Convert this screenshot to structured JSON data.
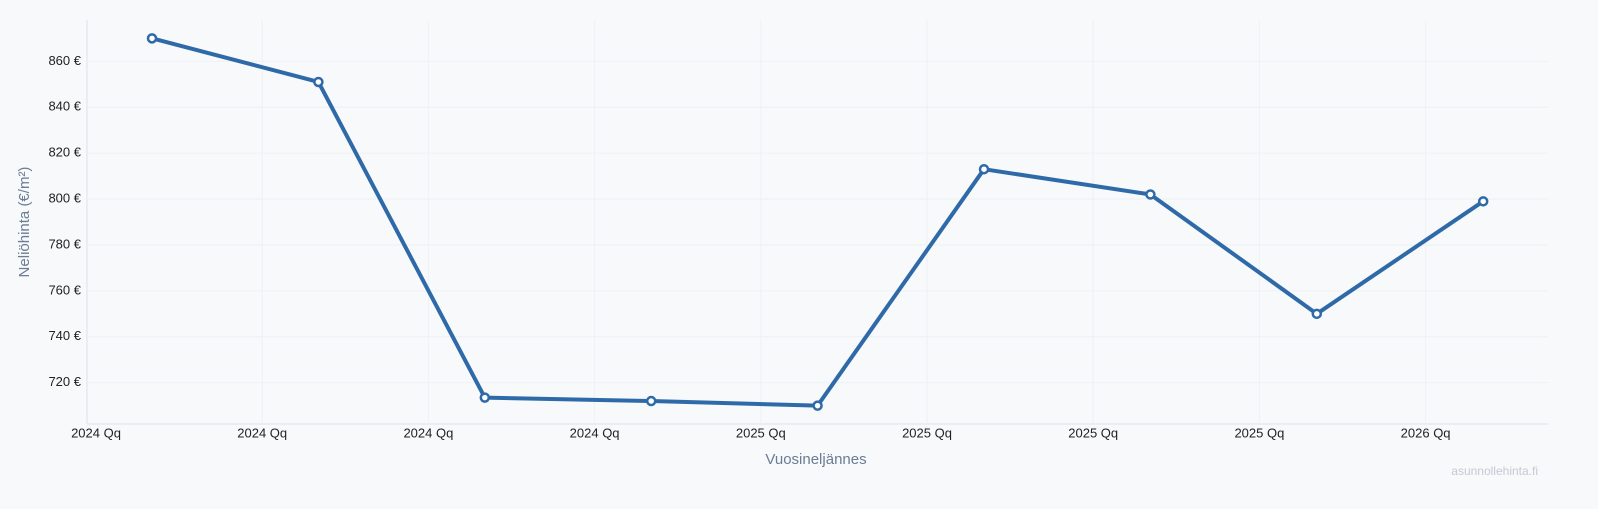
{
  "chart_data": {
    "type": "line",
    "ylabel": "Neliöhinta (€/m²)",
    "xlabel": "Vuosineljännes",
    "watermark": "asunnollehinta.fi",
    "x_tick_labels": [
      "2024 Qq",
      "2024 Qq",
      "2024 Qq",
      "2024 Qq",
      "2025 Qq",
      "2025 Qq",
      "2025 Qq",
      "2025 Qq",
      "2026 Qq"
    ],
    "values": [
      870,
      851,
      713.5,
      712,
      710,
      813,
      802,
      750,
      799
    ],
    "color": "#2f6aa8",
    "ylim": [
      702,
      878
    ],
    "yticks": [
      {
        "value": 720,
        "label": "720 €"
      },
      {
        "value": 740,
        "label": "740 €"
      },
      {
        "value": 760,
        "label": "760 €"
      },
      {
        "value": 780,
        "label": "780 €"
      },
      {
        "value": 800,
        "label": "800 €"
      },
      {
        "value": 820,
        "label": "820 €"
      },
      {
        "value": 840,
        "label": "840 €"
      },
      {
        "value": 860,
        "label": "860 €"
      }
    ],
    "grid": true
  }
}
